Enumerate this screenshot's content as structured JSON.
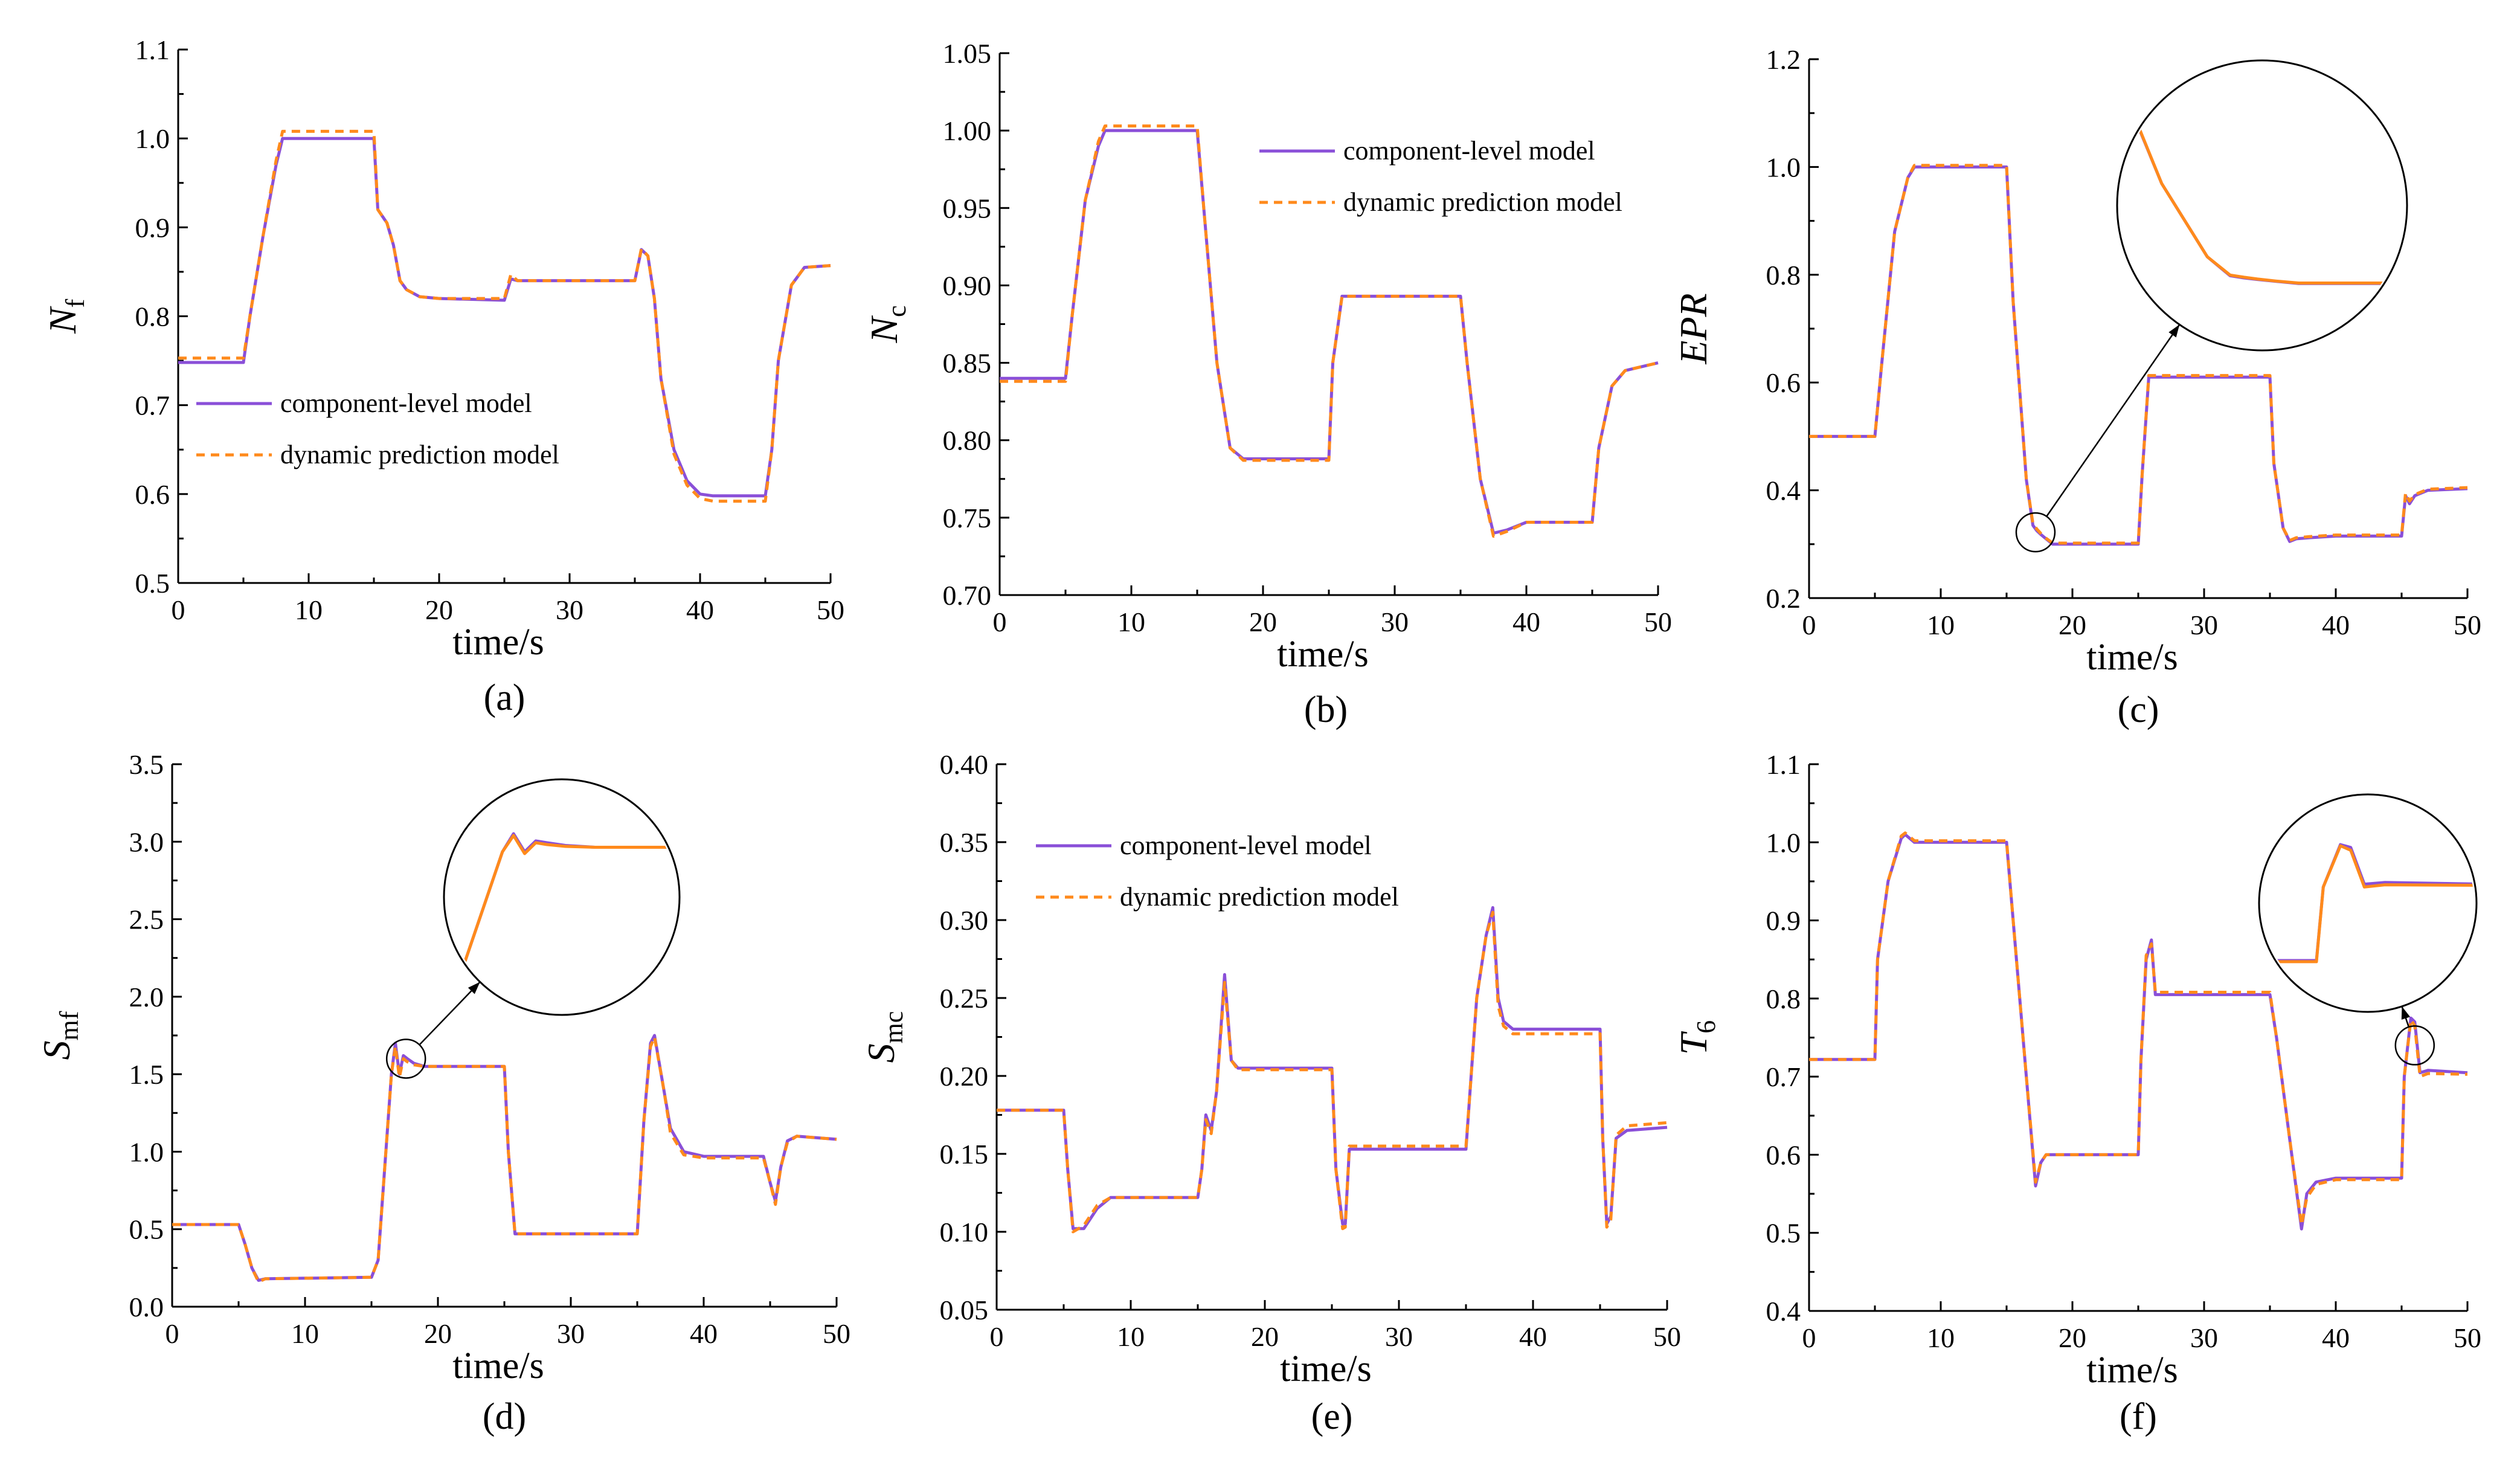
{
  "colors": {
    "component": "#8a4fd8",
    "dynamic": "#ff8a1c",
    "axis": "#000000",
    "inset": "#000000"
  },
  "legend": {
    "component": "component-level model",
    "dynamic": "dynamic prediction model"
  },
  "chart_data": [
    {
      "type": "line",
      "caption": "(a)",
      "ylabel_main": "N",
      "ylabel_sub": "f",
      "xlabel": "time/s",
      "xlim": [
        0,
        50
      ],
      "ylim": [
        0.5,
        1.1
      ],
      "xticks": [
        "0",
        "10",
        "20",
        "30",
        "40",
        "50"
      ],
      "yticks": [
        "0.5",
        "0.6",
        "0.7",
        "0.8",
        "0.9",
        "1.0",
        "1.1"
      ],
      "legend_position": "center-left",
      "inset": null,
      "series": [
        {
          "name": "component-level model",
          "x": [
            0,
            5,
            5.5,
            6.5,
            7.5,
            8,
            15,
            15.3,
            16,
            16.5,
            17,
            17.5,
            18.5,
            20,
            25,
            25.5,
            26,
            26.5,
            35,
            35.5,
            36,
            36.5,
            37,
            38,
            39,
            40,
            41,
            45,
            45.5,
            46,
            47,
            48,
            50
          ],
          "y": [
            0.748,
            0.748,
            0.8,
            0.89,
            0.97,
            1.0,
            1.0,
            0.92,
            0.905,
            0.88,
            0.84,
            0.83,
            0.822,
            0.82,
            0.818,
            0.842,
            0.84,
            0.84,
            0.84,
            0.875,
            0.868,
            0.82,
            0.73,
            0.65,
            0.615,
            0.6,
            0.598,
            0.598,
            0.65,
            0.75,
            0.835,
            0.855,
            0.857
          ]
        },
        {
          "name": "dynamic prediction model",
          "x": [
            0,
            5,
            5.5,
            6.5,
            7.5,
            8,
            15,
            15.3,
            16,
            16.5,
            17,
            17.5,
            18.5,
            20,
            25,
            25.5,
            26,
            26.5,
            35,
            35.5,
            36,
            36.5,
            37,
            38,
            39,
            40,
            41,
            45,
            45.5,
            46,
            47,
            48,
            50
          ],
          "y": [
            0.753,
            0.753,
            0.8,
            0.89,
            0.975,
            1.008,
            1.008,
            0.92,
            0.905,
            0.88,
            0.84,
            0.83,
            0.822,
            0.82,
            0.82,
            0.847,
            0.84,
            0.84,
            0.84,
            0.876,
            0.868,
            0.82,
            0.73,
            0.645,
            0.61,
            0.595,
            0.592,
            0.592,
            0.65,
            0.75,
            0.835,
            0.855,
            0.857
          ]
        }
      ]
    },
    {
      "type": "line",
      "caption": "(b)",
      "ylabel_main": "N",
      "ylabel_sub": "c",
      "xlabel": "time/s",
      "xlim": [
        0,
        50
      ],
      "ylim": [
        0.7,
        1.05
      ],
      "xticks": [
        "0",
        "10",
        "20",
        "30",
        "40",
        "50"
      ],
      "yticks": [
        "0.70",
        "0.75",
        "0.80",
        "0.85",
        "0.90",
        "0.95",
        "1.00",
        "1.05"
      ],
      "legend_position": "top-right",
      "inset": null,
      "series": [
        {
          "name": "component-level model",
          "x": [
            0,
            5,
            5.5,
            6.5,
            7.5,
            8,
            15,
            15.5,
            16.5,
            17.5,
            18.5,
            20,
            25,
            25.3,
            26,
            35,
            35.5,
            36.5,
            37.5,
            38.5,
            40,
            45,
            45.5,
            46.5,
            47.5,
            50
          ],
          "y": [
            0.84,
            0.84,
            0.88,
            0.955,
            0.99,
            1.0,
            1.0,
            0.95,
            0.85,
            0.795,
            0.788,
            0.788,
            0.788,
            0.85,
            0.893,
            0.893,
            0.85,
            0.775,
            0.74,
            0.742,
            0.747,
            0.747,
            0.795,
            0.835,
            0.845,
            0.85
          ]
        },
        {
          "name": "dynamic prediction model",
          "x": [
            0,
            5,
            5.5,
            6.5,
            7.5,
            8,
            15,
            15.5,
            16.5,
            17.5,
            18.5,
            20,
            25,
            25.3,
            26,
            35,
            35.5,
            36.5,
            37.5,
            38.5,
            40,
            45,
            45.5,
            46.5,
            47.5,
            50
          ],
          "y": [
            0.838,
            0.838,
            0.88,
            0.955,
            0.993,
            1.003,
            1.003,
            0.95,
            0.85,
            0.795,
            0.787,
            0.787,
            0.787,
            0.85,
            0.893,
            0.893,
            0.85,
            0.775,
            0.738,
            0.741,
            0.747,
            0.747,
            0.795,
            0.835,
            0.845,
            0.85
          ]
        }
      ]
    },
    {
      "type": "line",
      "caption": "(c)",
      "ylabel_main": "EPR",
      "ylabel_sub": "",
      "xlabel": "time/s",
      "xlim": [
        0,
        50
      ],
      "ylim": [
        0.2,
        1.2
      ],
      "xticks": [
        "0",
        "10",
        "20",
        "30",
        "40",
        "50"
      ],
      "yticks": [
        "0.2",
        "0.4",
        "0.6",
        "0.8",
        "1.0",
        "1.2"
      ],
      "legend_position": "none",
      "inset": {
        "focus_x": 17.2,
        "focus_y": 0.322,
        "focus_r": 15
      },
      "series": [
        {
          "name": "component-level model",
          "x": [
            0,
            5,
            5.5,
            6.5,
            7.5,
            8,
            15,
            15.5,
            16.5,
            17,
            17.3,
            17.6,
            18,
            18.5,
            20,
            25,
            25.3,
            25.8,
            35,
            35.3,
            36,
            36.5,
            37,
            38,
            40,
            45,
            45.3,
            45.6,
            46,
            47,
            50
          ],
          "y": [
            0.5,
            0.5,
            0.63,
            0.88,
            0.98,
            1.0,
            1.0,
            0.75,
            0.42,
            0.335,
            0.325,
            0.318,
            0.31,
            0.3,
            0.3,
            0.3,
            0.43,
            0.61,
            0.61,
            0.45,
            0.33,
            0.305,
            0.31,
            0.312,
            0.315,
            0.315,
            0.39,
            0.375,
            0.39,
            0.4,
            0.403
          ]
        },
        {
          "name": "dynamic prediction model",
          "x": [
            0,
            5,
            5.5,
            6.5,
            7.5,
            8,
            15,
            15.5,
            16.5,
            17,
            17.3,
            17.6,
            18,
            18.5,
            20,
            25,
            25.3,
            25.8,
            35,
            35.3,
            36,
            36.5,
            37,
            38,
            40,
            45,
            45.3,
            45.6,
            46,
            47,
            50
          ],
          "y": [
            0.5,
            0.5,
            0.63,
            0.88,
            0.98,
            1.003,
            1.003,
            0.75,
            0.42,
            0.338,
            0.328,
            0.32,
            0.311,
            0.302,
            0.302,
            0.302,
            0.43,
            0.613,
            0.613,
            0.45,
            0.33,
            0.307,
            0.312,
            0.314,
            0.317,
            0.317,
            0.395,
            0.38,
            0.392,
            0.402,
            0.405
          ]
        }
      ]
    },
    {
      "type": "line",
      "caption": "(d)",
      "ylabel_main": "S",
      "ylabel_sub": "mf",
      "xlabel": "time/s",
      "xlim": [
        0,
        50
      ],
      "ylim": [
        0.0,
        3.5
      ],
      "xticks": [
        "0",
        "10",
        "20",
        "30",
        "40",
        "50"
      ],
      "yticks": [
        "0.0",
        "0.5",
        "1.0",
        "1.5",
        "2.0",
        "2.5",
        "3.0",
        "3.5"
      ],
      "legend_position": "none",
      "inset": {
        "focus_x": 17.6,
        "focus_y": 1.6,
        "focus_r": 1.7
      },
      "series": [
        {
          "name": "component-level model",
          "x": [
            0,
            5,
            5.5,
            6,
            6.5,
            7,
            15,
            15.5,
            16,
            16.5,
            16.8,
            17.1,
            17.4,
            17.7,
            18.2,
            19,
            20,
            25,
            25.3,
            25.8,
            35,
            35.5,
            36,
            36.3,
            37,
            37.5,
            38.5,
            40,
            44.5,
            45,
            45.4,
            45.8,
            46.3,
            47,
            50
          ],
          "y": [
            0.53,
            0.53,
            0.4,
            0.25,
            0.17,
            0.18,
            0.19,
            0.3,
            0.9,
            1.5,
            1.7,
            1.5,
            1.62,
            1.6,
            1.57,
            1.55,
            1.55,
            1.55,
            1.0,
            0.47,
            0.47,
            1.2,
            1.7,
            1.75,
            1.4,
            1.15,
            1.0,
            0.97,
            0.97,
            0.8,
            0.68,
            0.9,
            1.07,
            1.1,
            1.08
          ]
        },
        {
          "name": "dynamic prediction model",
          "x": [
            0,
            5,
            5.5,
            6,
            6.5,
            7,
            15,
            15.5,
            16,
            16.5,
            16.8,
            17.1,
            17.4,
            17.7,
            18.2,
            19,
            20,
            25,
            25.3,
            25.8,
            35,
            35.5,
            36,
            36.3,
            37,
            37.5,
            38.5,
            40,
            44.5,
            45,
            45.4,
            45.8,
            46.3,
            47,
            50
          ],
          "y": [
            0.53,
            0.53,
            0.4,
            0.25,
            0.16,
            0.18,
            0.19,
            0.3,
            0.9,
            1.5,
            1.68,
            1.48,
            1.6,
            1.58,
            1.56,
            1.55,
            1.55,
            1.55,
            1.0,
            0.47,
            0.47,
            1.2,
            1.68,
            1.74,
            1.4,
            1.12,
            0.98,
            0.96,
            0.96,
            0.8,
            0.66,
            0.9,
            1.06,
            1.1,
            1.08
          ]
        }
      ]
    },
    {
      "type": "line",
      "caption": "(e)",
      "ylabel_main": "S",
      "ylabel_sub": "mc",
      "xlabel": "time/s",
      "xlim": [
        0,
        50
      ],
      "ylim": [
        0.05,
        0.4
      ],
      "xticks": [
        "0",
        "10",
        "20",
        "30",
        "40",
        "50"
      ],
      "yticks": [
        "0.05",
        "0.10",
        "0.15",
        "0.20",
        "0.25",
        "0.30",
        "0.35",
        "0.40"
      ],
      "legend_position": "top-left",
      "inset": null,
      "series": [
        {
          "name": "component-level model",
          "x": [
            0,
            5,
            5.3,
            5.7,
            6.5,
            7.5,
            8.5,
            15,
            15.3,
            15.6,
            16,
            16.4,
            17,
            17.5,
            18,
            20,
            25,
            25.3,
            25.8,
            26,
            26.3,
            35,
            35.3,
            35.8,
            36.5,
            37,
            37.4,
            37.8,
            38.5,
            40,
            45,
            45.2,
            45.5,
            45.8,
            46.2,
            47,
            50
          ],
          "y": [
            0.178,
            0.178,
            0.14,
            0.102,
            0.102,
            0.115,
            0.122,
            0.122,
            0.14,
            0.175,
            0.165,
            0.19,
            0.265,
            0.21,
            0.205,
            0.205,
            0.205,
            0.14,
            0.105,
            0.105,
            0.153,
            0.153,
            0.19,
            0.25,
            0.29,
            0.308,
            0.25,
            0.235,
            0.23,
            0.23,
            0.23,
            0.16,
            0.105,
            0.11,
            0.16,
            0.165,
            0.167
          ]
        },
        {
          "name": "dynamic prediction model",
          "x": [
            0,
            5,
            5.3,
            5.7,
            6.5,
            7.5,
            8.5,
            15,
            15.3,
            15.6,
            16,
            16.4,
            17,
            17.5,
            18,
            20,
            25,
            25.3,
            25.8,
            26,
            26.3,
            35,
            35.3,
            35.8,
            36.5,
            37,
            37.4,
            37.8,
            38.5,
            40,
            45,
            45.2,
            45.5,
            45.8,
            46.2,
            47,
            50
          ],
          "y": [
            0.178,
            0.178,
            0.14,
            0.1,
            0.104,
            0.117,
            0.122,
            0.122,
            0.14,
            0.172,
            0.163,
            0.19,
            0.26,
            0.21,
            0.204,
            0.204,
            0.204,
            0.14,
            0.102,
            0.103,
            0.155,
            0.155,
            0.19,
            0.25,
            0.29,
            0.305,
            0.245,
            0.232,
            0.227,
            0.227,
            0.227,
            0.16,
            0.103,
            0.108,
            0.162,
            0.168,
            0.17
          ]
        }
      ]
    },
    {
      "type": "line",
      "caption": "(f)",
      "ylabel_main": "T",
      "ylabel_sub": "6",
      "xlabel": "time/s",
      "xlim": [
        0,
        50
      ],
      "ylim": [
        0.4,
        1.1
      ],
      "xticks": [
        "0",
        "10",
        "20",
        "30",
        "40",
        "50"
      ],
      "yticks": [
        "0.4",
        "0.5",
        "0.6",
        "0.7",
        "0.8",
        "0.9",
        "1.0",
        "1.1"
      ],
      "legend_position": "none",
      "inset": {
        "focus_x": 46,
        "focus_y": 0.74,
        "focus_r": 0.06
      },
      "series": [
        {
          "name": "component-level model",
          "x": [
            0,
            5,
            5.2,
            6,
            7,
            7.3,
            8,
            15,
            15.5,
            16.5,
            17.2,
            17.6,
            18,
            20,
            25,
            25.2,
            25.6,
            26,
            26.3,
            35,
            35.5,
            36.5,
            37.4,
            37.8,
            38.5,
            40,
            45,
            45.2,
            45.7,
            46,
            46.4,
            47,
            50
          ],
          "y": [
            0.722,
            0.722,
            0.85,
            0.95,
            1.005,
            1.01,
            1.0,
            1.0,
            0.9,
            0.7,
            0.56,
            0.59,
            0.6,
            0.6,
            0.6,
            0.72,
            0.85,
            0.875,
            0.805,
            0.805,
            0.75,
            0.62,
            0.505,
            0.55,
            0.565,
            0.57,
            0.57,
            0.7,
            0.775,
            0.77,
            0.705,
            0.708,
            0.705
          ]
        },
        {
          "name": "dynamic prediction model",
          "x": [
            0,
            5,
            5.2,
            6,
            7,
            7.3,
            8,
            15,
            15.5,
            16.5,
            17.2,
            17.6,
            18,
            20,
            25,
            25.2,
            25.6,
            26,
            26.3,
            35,
            35.5,
            36.5,
            37.4,
            37.8,
            38.5,
            40,
            45,
            45.2,
            45.7,
            46,
            46.4,
            47,
            50
          ],
          "y": [
            0.722,
            0.722,
            0.85,
            0.95,
            1.008,
            1.012,
            1.002,
            1.002,
            0.9,
            0.7,
            0.565,
            0.59,
            0.6,
            0.6,
            0.6,
            0.72,
            0.855,
            0.87,
            0.808,
            0.808,
            0.75,
            0.62,
            0.51,
            0.545,
            0.562,
            0.568,
            0.568,
            0.7,
            0.773,
            0.765,
            0.7,
            0.704,
            0.703
          ]
        }
      ]
    }
  ]
}
